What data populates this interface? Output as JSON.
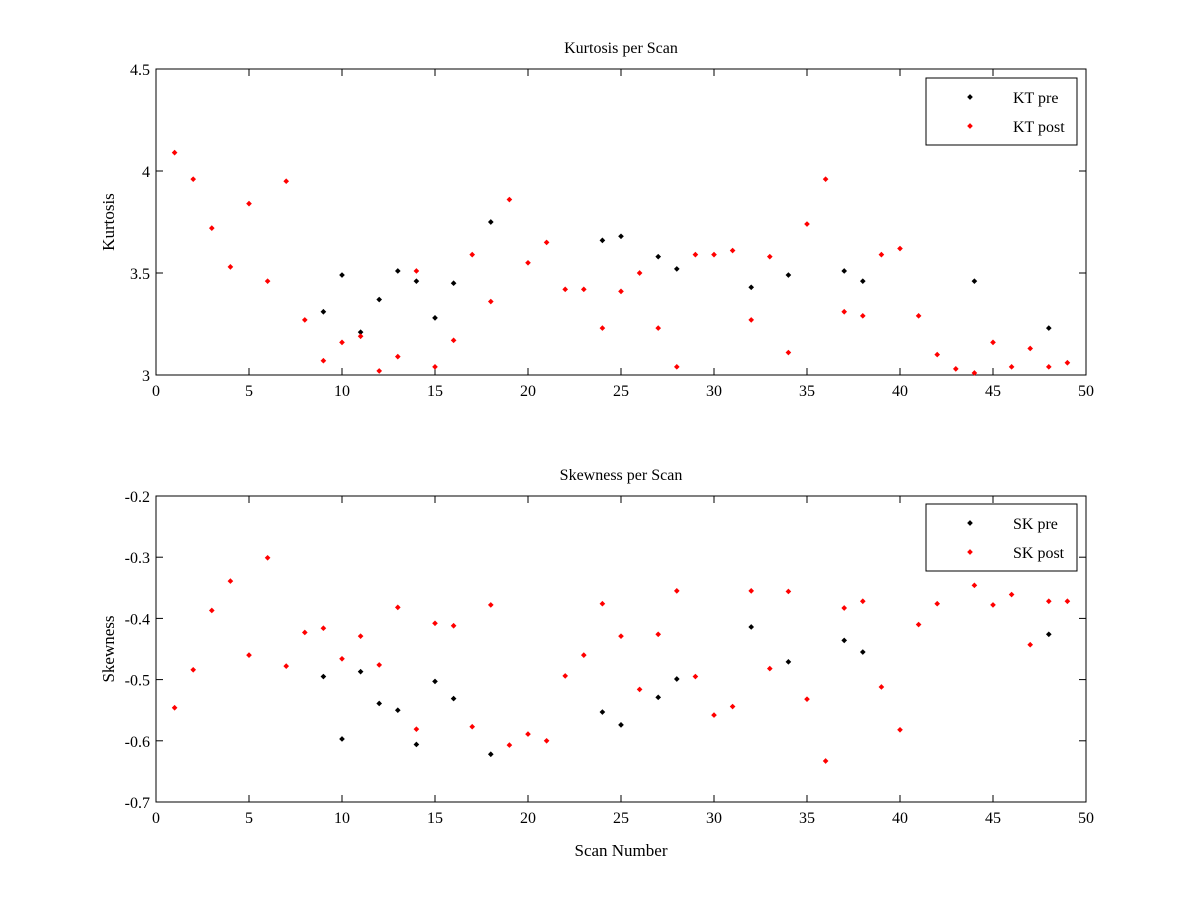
{
  "colors": {
    "pre": "#000000",
    "post": "#ff0000",
    "axes": "#000000",
    "background": "#ffffff"
  },
  "chart_data": [
    {
      "type": "scatter",
      "title": "Kurtosis per Scan",
      "xlabel": "",
      "ylabel": "Kurtosis",
      "xlim": [
        0,
        50
      ],
      "ylim": [
        3,
        4.5
      ],
      "xticks": [
        0,
        5,
        10,
        15,
        20,
        25,
        30,
        35,
        40,
        45,
        50
      ],
      "yticks": [
        3,
        3.5,
        4,
        4.5
      ],
      "xtick_labels": [
        "0",
        "5",
        "10",
        "15",
        "20",
        "25",
        "30",
        "35",
        "40",
        "45",
        "50"
      ],
      "ytick_labels": [
        "3",
        "3.5",
        "4",
        "4.5"
      ],
      "grid": false,
      "legend_position": "top-right",
      "series": [
        {
          "name": "KT pre",
          "color": "#000000",
          "x": [
            9,
            10,
            11,
            12,
            13,
            14,
            15,
            16,
            18,
            24,
            25,
            27,
            28,
            32,
            34,
            37,
            38,
            44,
            48
          ],
          "y": [
            3.31,
            3.49,
            3.21,
            3.37,
            3.51,
            3.46,
            3.28,
            3.45,
            3.75,
            3.66,
            3.68,
            3.58,
            3.52,
            3.43,
            3.49,
            3.51,
            3.46,
            3.46,
            3.23
          ]
        },
        {
          "name": "KT post",
          "color": "#ff0000",
          "x": [
            1,
            2,
            3,
            4,
            5,
            6,
            7,
            8,
            9,
            10,
            11,
            12,
            13,
            14,
            15,
            16,
            17,
            18,
            19,
            20,
            21,
            22,
            23,
            24,
            25,
            26,
            27,
            28,
            29,
            30,
            31,
            32,
            33,
            34,
            35,
            36,
            37,
            38,
            39,
            40,
            41,
            42,
            43,
            44,
            45,
            46,
            47,
            48,
            49
          ],
          "y": [
            4.09,
            3.96,
            3.72,
            3.53,
            3.84,
            3.46,
            3.95,
            3.27,
            3.07,
            3.16,
            3.19,
            3.02,
            3.09,
            3.51,
            3.04,
            3.17,
            3.59,
            3.36,
            3.86,
            3.55,
            3.65,
            3.42,
            3.42,
            3.23,
            3.41,
            3.5,
            3.23,
            3.04,
            3.59,
            3.59,
            3.61,
            3.27,
            3.58,
            3.11,
            3.74,
            3.96,
            3.31,
            3.29,
            3.59,
            3.62,
            3.29,
            3.1,
            3.03,
            3.01,
            3.16,
            3.04,
            3.13,
            3.04,
            3.06
          ]
        }
      ]
    },
    {
      "type": "scatter",
      "title": "Skewness per Scan",
      "xlabel": "Scan Number",
      "ylabel": "Skewness",
      "xlim": [
        0,
        50
      ],
      "ylim": [
        -0.7,
        -0.2
      ],
      "xticks": [
        0,
        5,
        10,
        15,
        20,
        25,
        30,
        35,
        40,
        45,
        50
      ],
      "yticks": [
        -0.7,
        -0.6,
        -0.5,
        -0.4,
        -0.3,
        -0.2
      ],
      "xtick_labels": [
        "0",
        "5",
        "10",
        "15",
        "20",
        "25",
        "30",
        "35",
        "40",
        "45",
        "50"
      ],
      "ytick_labels": [
        "-0.7",
        "-0.6",
        "-0.5",
        "-0.4",
        "-0.3",
        "-0.2"
      ],
      "grid": false,
      "legend_position": "top-right",
      "series": [
        {
          "name": "SK pre",
          "color": "#000000",
          "x": [
            9,
            10,
            11,
            12,
            13,
            14,
            15,
            16,
            18,
            24,
            25,
            27,
            28,
            32,
            34,
            37,
            38,
            48
          ],
          "y": [
            -0.495,
            -0.597,
            -0.487,
            -0.539,
            -0.55,
            -0.606,
            -0.503,
            -0.531,
            -0.622,
            -0.553,
            -0.574,
            -0.529,
            -0.499,
            -0.414,
            -0.471,
            -0.436,
            -0.455,
            -0.426
          ]
        },
        {
          "name": "SK post",
          "color": "#ff0000",
          "x": [
            1,
            2,
            3,
            4,
            5,
            6,
            7,
            8,
            9,
            10,
            11,
            12,
            13,
            14,
            15,
            16,
            17,
            18,
            19,
            20,
            21,
            22,
            23,
            24,
            25,
            26,
            27,
            28,
            29,
            30,
            31,
            32,
            33,
            34,
            35,
            36,
            37,
            38,
            39,
            40,
            41,
            42,
            43,
            44,
            45,
            46,
            47,
            48,
            49
          ],
          "y": [
            -0.546,
            -0.484,
            -0.387,
            -0.339,
            -0.46,
            -0.301,
            -0.478,
            -0.423,
            -0.416,
            -0.466,
            -0.429,
            -0.476,
            -0.382,
            -0.581,
            -0.408,
            -0.412,
            -0.577,
            -0.378,
            -0.607,
            -0.589,
            -0.6,
            -0.494,
            -0.46,
            -0.376,
            -0.429,
            -0.516,
            -0.426,
            -0.355,
            -0.495,
            -0.558,
            -0.544,
            -0.355,
            -0.482,
            -0.356,
            -0.532,
            -0.633,
            -0.383,
            -0.372,
            -0.512,
            -0.582,
            -0.41,
            -0.376,
            null,
            -0.346,
            -0.378,
            -0.361,
            -0.443,
            -0.372,
            -0.372
          ]
        }
      ]
    }
  ]
}
